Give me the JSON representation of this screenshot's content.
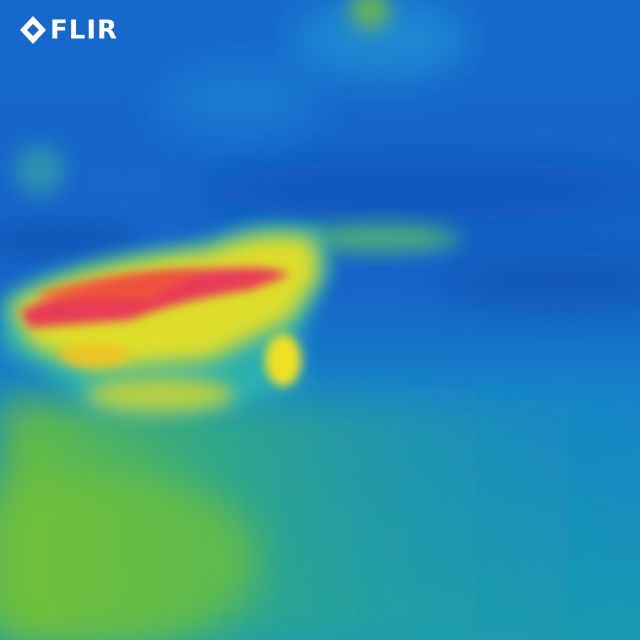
{
  "logo": {
    "text": "FLIR"
  }
}
